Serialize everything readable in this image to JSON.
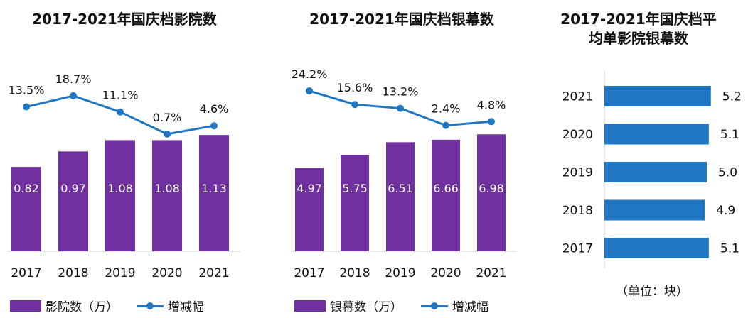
{
  "colors": {
    "bar": "#7030A0",
    "line": "#1F77C4",
    "hbar": "#1F77C4"
  },
  "chart_data": [
    {
      "type": "bar+line",
      "title": "2017-2021年国庆档影院数",
      "categories": [
        "2017",
        "2018",
        "2019",
        "2020",
        "2021"
      ],
      "series": [
        {
          "name": "影院数（万）",
          "type": "bar",
          "values": [
            0.82,
            0.97,
            1.08,
            1.08,
            1.13
          ],
          "labels": [
            "0.82",
            "0.97",
            "1.08",
            "1.08",
            "1.13"
          ]
        },
        {
          "name": "增减幅",
          "type": "line",
          "values": [
            13.5,
            18.7,
            11.1,
            0.7,
            4.6
          ],
          "labels": [
            "13.5%",
            "18.7%",
            "11.1%",
            "0.7%",
            "4.6%"
          ]
        }
      ]
    },
    {
      "type": "bar+line",
      "title": "2017-2021年国庆档银幕数",
      "categories": [
        "2017",
        "2018",
        "2019",
        "2020",
        "2021"
      ],
      "series": [
        {
          "name": "银幕数（万）",
          "type": "bar",
          "values": [
            4.97,
            5.75,
            6.51,
            6.66,
            6.98
          ],
          "labels": [
            "4.97",
            "5.75",
            "6.51",
            "6.66",
            "6.98"
          ]
        },
        {
          "name": "增减幅",
          "type": "line",
          "values": [
            24.2,
            15.6,
            13.2,
            2.4,
            4.8
          ],
          "labels": [
            "24.2%",
            "15.6%",
            "13.2%",
            "2.4%",
            "4.8%"
          ]
        }
      ]
    },
    {
      "type": "bar",
      "orientation": "horizontal",
      "title": "2017-2021年国庆档平均单影院银幕数",
      "categories": [
        "2021",
        "2020",
        "2019",
        "2018",
        "2017"
      ],
      "values": [
        5.2,
        5.1,
        5.0,
        4.9,
        5.1
      ],
      "labels": [
        "5.2",
        "5.1",
        "5.0",
        "4.9",
        "5.1"
      ],
      "unit": "（单位：块）"
    }
  ]
}
